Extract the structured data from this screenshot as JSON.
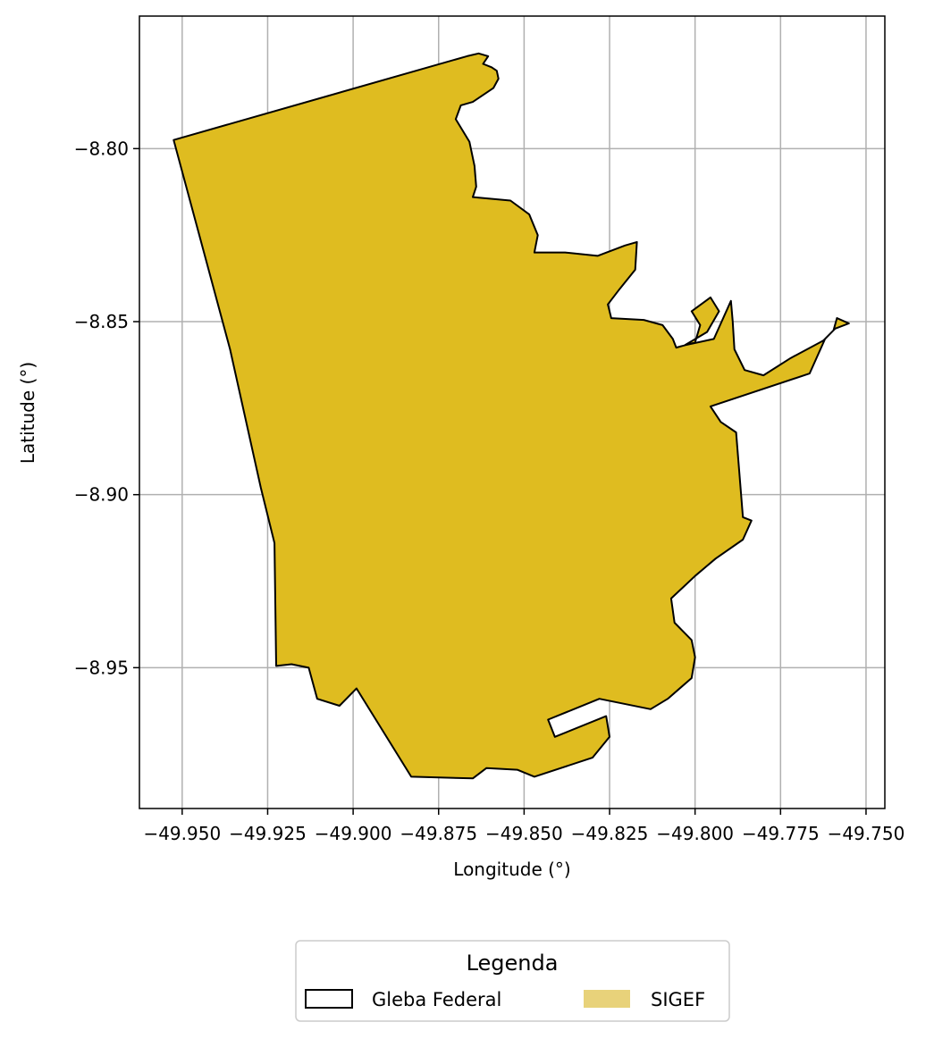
{
  "chart_data": {
    "type": "map",
    "xlabel": "Longitude (°)",
    "ylabel": "Latitude (°)",
    "xlim": [
      -49.9625,
      -49.7445
    ],
    "ylim": [
      -8.9907,
      -8.7617
    ],
    "x_ticks": [
      -49.95,
      -49.925,
      -49.9,
      -49.875,
      -49.85,
      -49.825,
      -49.8,
      -49.775,
      -49.75
    ],
    "x_tick_labels": [
      "−49.950",
      "−49.925",
      "−49.900",
      "−49.875",
      "−49.850",
      "−49.825",
      "−49.800",
      "−49.775",
      "−49.750"
    ],
    "y_ticks": [
      -8.8,
      -8.85,
      -8.9,
      -8.95
    ],
    "y_tick_labels": [
      "−8.80",
      "−8.85",
      "−8.90",
      "−8.95"
    ],
    "grid": true,
    "legend": {
      "title": "Legenda",
      "placement": "bottom-center",
      "entries": [
        {
          "label": "Gleba Federal",
          "style": "outline",
          "edge_color": "#000000",
          "fill": "none"
        },
        {
          "label": "SIGEF",
          "style": "fill",
          "color": "#e8d27a"
        }
      ]
    },
    "polygon_fill": "#dfbc20",
    "polygon_edge": "#000000",
    "polygon": [
      [
        -49.9525,
        -8.7975
      ],
      [
        -49.8667,
        -8.7733
      ],
      [
        -49.8633,
        -8.7725
      ],
      [
        -49.8605,
        -8.7733
      ],
      [
        -49.862,
        -8.7755
      ],
      [
        -49.8595,
        -8.7765
      ],
      [
        -49.858,
        -8.7775
      ],
      [
        -49.8575,
        -8.7798
      ],
      [
        -49.859,
        -8.7825
      ],
      [
        -49.865,
        -8.7865
      ],
      [
        -49.8685,
        -8.7875
      ],
      [
        -49.87,
        -8.7915
      ],
      [
        -49.866,
        -8.798
      ],
      [
        -49.8645,
        -8.805
      ],
      [
        -49.864,
        -8.811
      ],
      [
        -49.865,
        -8.814
      ],
      [
        -49.854,
        -8.815
      ],
      [
        -49.8485,
        -8.819
      ],
      [
        -49.846,
        -8.825
      ],
      [
        -49.847,
        -8.83
      ],
      [
        -49.838,
        -8.83
      ],
      [
        -49.8285,
        -8.831
      ],
      [
        -49.8205,
        -8.828
      ],
      [
        -49.817,
        -8.827
      ],
      [
        -49.8175,
        -8.835
      ],
      [
        -49.822,
        -8.8405
      ],
      [
        -49.8255,
        -8.845
      ],
      [
        -49.8245,
        -8.849
      ],
      [
        -49.815,
        -8.8495
      ],
      [
        -49.8095,
        -8.851
      ],
      [
        -49.8065,
        -8.855
      ],
      [
        -49.8055,
        -8.8575
      ],
      [
        -49.8,
        -8.856
      ],
      [
        -49.7985,
        -8.851
      ],
      [
        -49.801,
        -8.847
      ],
      [
        -49.7955,
        -8.843
      ],
      [
        -49.793,
        -8.847
      ],
      [
        -49.7965,
        -8.853
      ],
      [
        -49.803,
        -8.8568
      ],
      [
        -49.7945,
        -8.855
      ],
      [
        -49.7895,
        -8.844
      ],
      [
        -49.789,
        -8.85
      ],
      [
        -49.7885,
        -8.858
      ],
      [
        -49.7855,
        -8.864
      ],
      [
        -49.78,
        -8.8655
      ],
      [
        -49.772,
        -8.8605
      ],
      [
        -49.7625,
        -8.8555
      ],
      [
        -49.759,
        -8.852
      ],
      [
        -49.755,
        -8.8505
      ],
      [
        -49.7585,
        -8.849
      ],
      [
        -49.7595,
        -8.8525
      ],
      [
        -49.762,
        -8.855
      ],
      [
        -49.7665,
        -8.865
      ],
      [
        -49.7955,
        -8.8745
      ],
      [
        -49.7925,
        -8.879
      ],
      [
        -49.788,
        -8.882
      ],
      [
        -49.786,
        -8.9065
      ],
      [
        -49.7835,
        -8.9075
      ],
      [
        -49.786,
        -8.913
      ],
      [
        -49.794,
        -8.9185
      ],
      [
        -49.8,
        -8.9235
      ],
      [
        -49.807,
        -8.93
      ],
      [
        -49.806,
        -8.937
      ],
      [
        -49.801,
        -8.942
      ],
      [
        -49.8,
        -8.947
      ],
      [
        -49.801,
        -8.953
      ],
      [
        -49.808,
        -8.959
      ],
      [
        -49.813,
        -8.962
      ],
      [
        -49.828,
        -8.959
      ],
      [
        -49.843,
        -8.965
      ],
      [
        -49.841,
        -8.97
      ],
      [
        -49.826,
        -8.964
      ],
      [
        -49.825,
        -8.97
      ],
      [
        -49.83,
        -8.976
      ],
      [
        -49.847,
        -8.9815
      ],
      [
        -49.852,
        -8.9795
      ],
      [
        -49.861,
        -8.979
      ],
      [
        -49.865,
        -8.982
      ],
      [
        -49.883,
        -8.9815
      ],
      [
        -49.899,
        -8.956
      ],
      [
        -49.904,
        -8.961
      ],
      [
        -49.9105,
        -8.959
      ],
      [
        -49.913,
        -8.95
      ],
      [
        -49.918,
        -8.949
      ],
      [
        -49.9225,
        -8.9495
      ],
      [
        -49.923,
        -8.914
      ],
      [
        -49.927,
        -8.898
      ],
      [
        -49.936,
        -8.858
      ]
    ]
  }
}
